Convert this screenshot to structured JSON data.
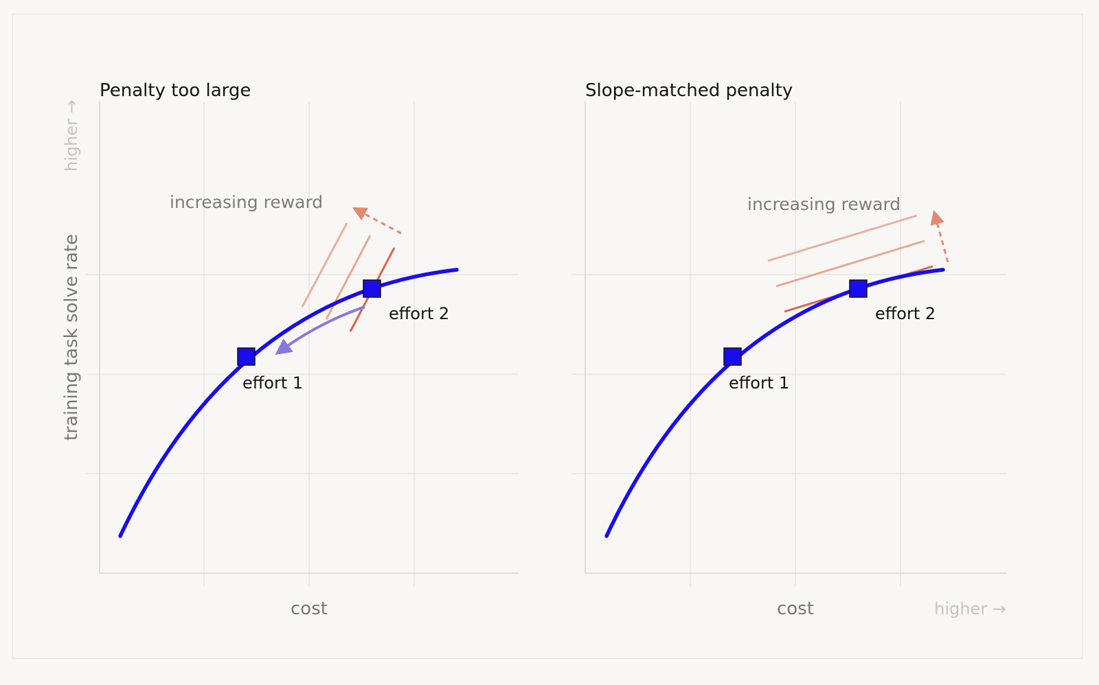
{
  "panels": [
    {
      "title": "Penalty too large",
      "annotation": "increasing reward",
      "xlabel": "cost",
      "ylabel": "training task solve rate",
      "y_hint": "higher →",
      "points": [
        {
          "label": "effort 1"
        },
        {
          "label": "effort 2"
        }
      ]
    },
    {
      "title": "Slope-matched penalty",
      "annotation": "increasing reward",
      "xlabel": "cost",
      "x_hint": "higher →",
      "points": [
        {
          "label": "effort 1"
        },
        {
          "label": "effort 2"
        }
      ]
    }
  ],
  "colors": {
    "curve": "#1a0cf0",
    "marker": "#1a0cf0",
    "reward_lines": "#e8a08a",
    "tangent": "#d9654a",
    "arrow_dashed": "#e08a70",
    "return_arrow": "#8878e0",
    "background": "#f8f7f5"
  }
}
